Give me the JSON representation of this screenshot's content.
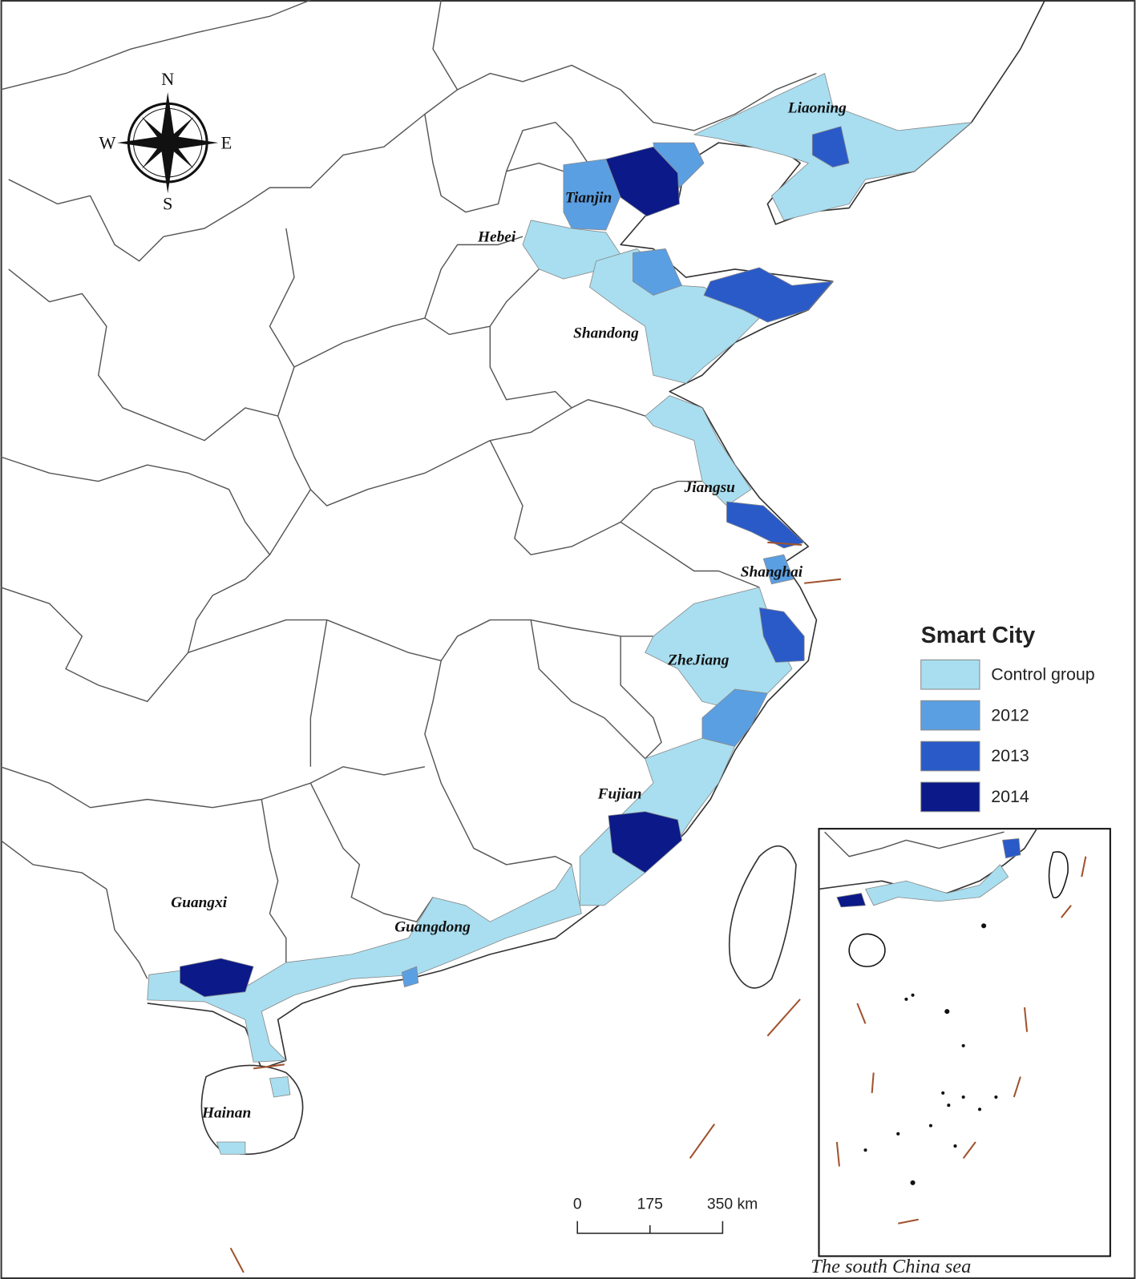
{
  "compass": {
    "north": "N",
    "south": "S",
    "east": "E",
    "west": "W"
  },
  "province_labels": [
    "Liaoning",
    "Tianjin",
    "Hebei",
    "Shandong",
    "Jiangsu",
    "Shanghai",
    "ZheJiang",
    "Fujian",
    "Guangxi",
    "Guangdong",
    "Hainan"
  ],
  "legend": {
    "title": "Smart City",
    "items": [
      {
        "label": "Control group",
        "color": "#a8def0"
      },
      {
        "label": "2012",
        "color": "#5b9fe3"
      },
      {
        "label": "2013",
        "color": "#2a5ac8"
      },
      {
        "label": "2014",
        "color": "#0b1a88"
      }
    ]
  },
  "scale_bar": {
    "labels": [
      "0",
      "175",
      "350 km"
    ]
  },
  "inset": {
    "caption": "The south China sea"
  }
}
